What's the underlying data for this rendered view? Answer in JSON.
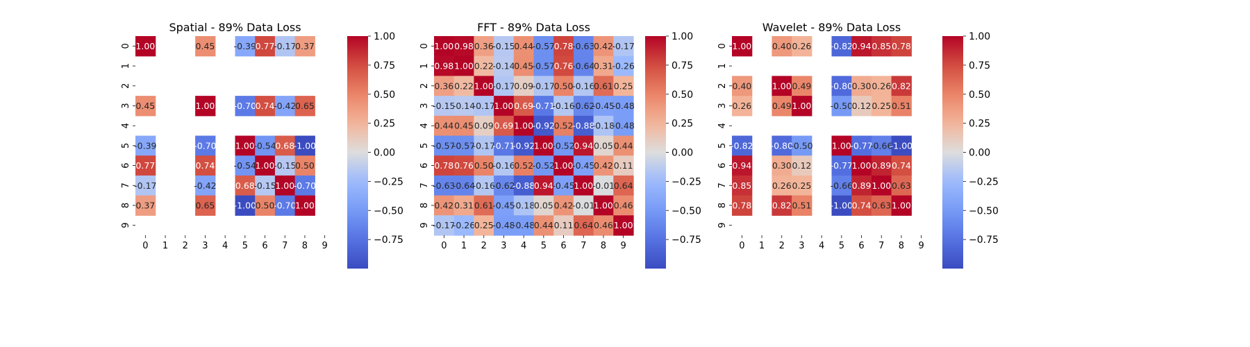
{
  "chart_data": [
    {
      "type": "heatmap",
      "title": "Spatial - 89% Data Loss",
      "x_tick_labels": [
        "0",
        "1",
        "2",
        "3",
        "4",
        "5",
        "6",
        "7",
        "8",
        "9"
      ],
      "y_tick_labels": [
        "0",
        "1",
        "2",
        "3",
        "4",
        "5",
        "6",
        "7",
        "8",
        "9"
      ],
      "colormap": "coolwarm",
      "color_range": [
        -1.0,
        1.0
      ],
      "colorbar_ticks": [
        -0.75,
        -0.5,
        -0.25,
        0.0,
        0.25,
        0.5,
        0.75,
        1.0
      ],
      "colorbar_tick_labels": [
        "−0.75",
        "−0.50",
        "−0.25",
        "0.00",
        "0.25",
        "0.50",
        "0.75",
        "1.00"
      ],
      "missing_cells_blank": true,
      "values": [
        [
          1.0,
          null,
          null,
          0.45,
          null,
          -0.39,
          0.77,
          -0.17,
          0.37,
          null
        ],
        [
          null,
          null,
          null,
          null,
          null,
          null,
          null,
          null,
          null,
          null
        ],
        [
          null,
          null,
          null,
          null,
          null,
          null,
          null,
          null,
          null,
          null
        ],
        [
          0.45,
          null,
          null,
          1.0,
          null,
          -0.7,
          0.74,
          -0.42,
          0.65,
          null
        ],
        [
          null,
          null,
          null,
          null,
          null,
          null,
          null,
          null,
          null,
          null
        ],
        [
          -0.39,
          null,
          null,
          -0.7,
          null,
          1.0,
          -0.54,
          0.68,
          -1.0,
          null
        ],
        [
          0.77,
          null,
          null,
          0.74,
          null,
          -0.54,
          1.0,
          -0.15,
          0.5,
          null
        ],
        [
          -0.17,
          null,
          null,
          -0.42,
          null,
          0.68,
          -0.15,
          1.0,
          -0.7,
          null
        ],
        [
          0.37,
          null,
          null,
          0.65,
          null,
          -1.0,
          0.5,
          -0.7,
          1.0,
          null
        ],
        [
          null,
          null,
          null,
          null,
          null,
          null,
          null,
          null,
          null,
          null
        ]
      ]
    },
    {
      "type": "heatmap",
      "title": "FFT - 89% Data Loss",
      "x_tick_labels": [
        "0",
        "1",
        "2",
        "3",
        "4",
        "5",
        "6",
        "7",
        "8",
        "9"
      ],
      "y_tick_labels": [
        "0",
        "1",
        "2",
        "3",
        "4",
        "5",
        "6",
        "7",
        "8",
        "9"
      ],
      "colormap": "coolwarm",
      "color_range": [
        -1.0,
        1.0
      ],
      "colorbar_ticks": [
        -0.75,
        -0.5,
        -0.25,
        0.0,
        0.25,
        0.5,
        0.75,
        1.0
      ],
      "colorbar_tick_labels": [
        "−0.75",
        "−0.50",
        "−0.25",
        "0.00",
        "0.25",
        "0.50",
        "0.75",
        "1.00"
      ],
      "missing_cells_blank": true,
      "values": [
        [
          1.0,
          0.98,
          0.36,
          -0.15,
          0.44,
          -0.57,
          0.78,
          -0.63,
          0.42,
          -0.17
        ],
        [
          0.98,
          1.0,
          0.22,
          -0.14,
          0.45,
          -0.57,
          0.76,
          -0.64,
          0.31,
          -0.26
        ],
        [
          0.36,
          0.22,
          1.0,
          -0.17,
          0.09,
          -0.17,
          0.5,
          -0.16,
          0.61,
          0.25
        ],
        [
          -0.15,
          -0.14,
          -0.17,
          1.0,
          0.69,
          -0.71,
          -0.16,
          -0.62,
          -0.45,
          -0.48
        ],
        [
          0.44,
          0.45,
          0.09,
          0.69,
          1.0,
          -0.92,
          0.52,
          -0.88,
          -0.18,
          -0.48
        ],
        [
          -0.57,
          -0.57,
          -0.17,
          -0.71,
          -0.92,
          1.0,
          -0.52,
          0.94,
          0.05,
          0.44
        ],
        [
          0.78,
          0.76,
          0.5,
          -0.16,
          0.52,
          -0.52,
          1.0,
          -0.45,
          0.42,
          0.11
        ],
        [
          -0.63,
          -0.64,
          -0.16,
          -0.62,
          -0.88,
          0.94,
          -0.45,
          1.0,
          -0.01,
          0.64
        ],
        [
          0.42,
          0.31,
          0.61,
          -0.45,
          -0.18,
          0.05,
          0.42,
          -0.01,
          1.0,
          0.46
        ],
        [
          -0.17,
          -0.26,
          0.25,
          -0.48,
          -0.48,
          0.44,
          0.11,
          0.64,
          0.46,
          1.0
        ]
      ]
    },
    {
      "type": "heatmap",
      "title": "Wavelet - 89% Data Loss",
      "x_tick_labels": [
        "0",
        "1",
        "2",
        "3",
        "4",
        "5",
        "6",
        "7",
        "8",
        "9"
      ],
      "y_tick_labels": [
        "0",
        "1",
        "2",
        "3",
        "4",
        "5",
        "6",
        "7",
        "8",
        "9"
      ],
      "colormap": "coolwarm",
      "color_range": [
        -1.0,
        1.0
      ],
      "colorbar_ticks": [
        -0.75,
        -0.5,
        -0.25,
        0.0,
        0.25,
        0.5,
        0.75,
        1.0
      ],
      "colorbar_tick_labels": [
        "−0.75",
        "−0.50",
        "−0.25",
        "0.00",
        "0.25",
        "0.50",
        "0.75",
        "1.00"
      ],
      "missing_cells_blank": true,
      "values": [
        [
          1.0,
          null,
          0.4,
          0.26,
          null,
          -0.82,
          0.94,
          0.85,
          0.78,
          null
        ],
        [
          null,
          null,
          null,
          null,
          null,
          null,
          null,
          null,
          null,
          null
        ],
        [
          0.4,
          null,
          1.0,
          0.49,
          null,
          -0.8,
          0.3,
          0.26,
          0.82,
          null
        ],
        [
          0.26,
          null,
          0.49,
          1.0,
          null,
          -0.5,
          0.12,
          0.25,
          0.51,
          null
        ],
        [
          null,
          null,
          null,
          null,
          null,
          null,
          null,
          null,
          null,
          null
        ],
        [
          -0.82,
          null,
          -0.8,
          -0.5,
          null,
          1.0,
          -0.77,
          -0.66,
          -1.0,
          null
        ],
        [
          0.94,
          null,
          0.3,
          0.12,
          null,
          -0.77,
          1.0,
          0.89,
          0.74,
          null
        ],
        [
          0.85,
          null,
          0.26,
          0.25,
          null,
          -0.66,
          0.89,
          1.0,
          0.63,
          null
        ],
        [
          0.78,
          null,
          0.82,
          0.51,
          null,
          -1.0,
          0.74,
          0.63,
          1.0,
          null
        ],
        [
          null,
          null,
          null,
          null,
          null,
          null,
          null,
          null,
          null,
          null
        ]
      ]
    }
  ]
}
